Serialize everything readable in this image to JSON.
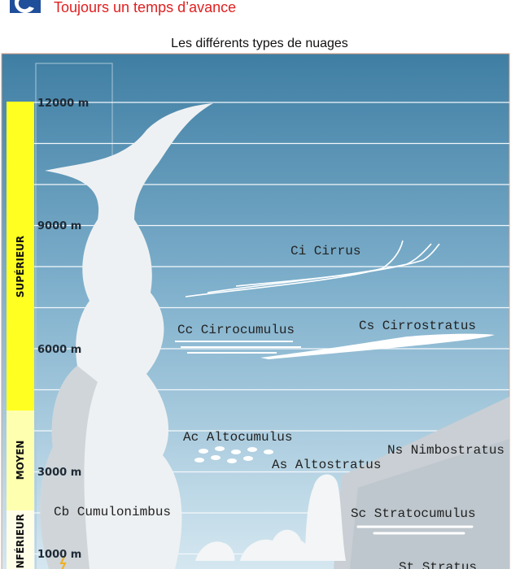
{
  "header": {
    "slogan": "Toujours un temps d’avance"
  },
  "title": "Les différents types de nuages",
  "levels": [
    "SUPÉRIEUR",
    "MOYEN",
    "INFÉRIEUR"
  ],
  "altitudes": [
    "12000 m",
    "9000 m",
    "6000 m",
    "3000 m",
    "1000 m"
  ],
  "clouds": [
    "Ci Cirrus",
    "Cc Cirrocumulus",
    "Cs Cirrostratus",
    "Ac Altocumulus",
    "Ns Nimbostratus",
    "As Altostratus",
    "Cb Cumulonimbus",
    "Sc Stratocumulus",
    "St Stratus"
  ]
}
